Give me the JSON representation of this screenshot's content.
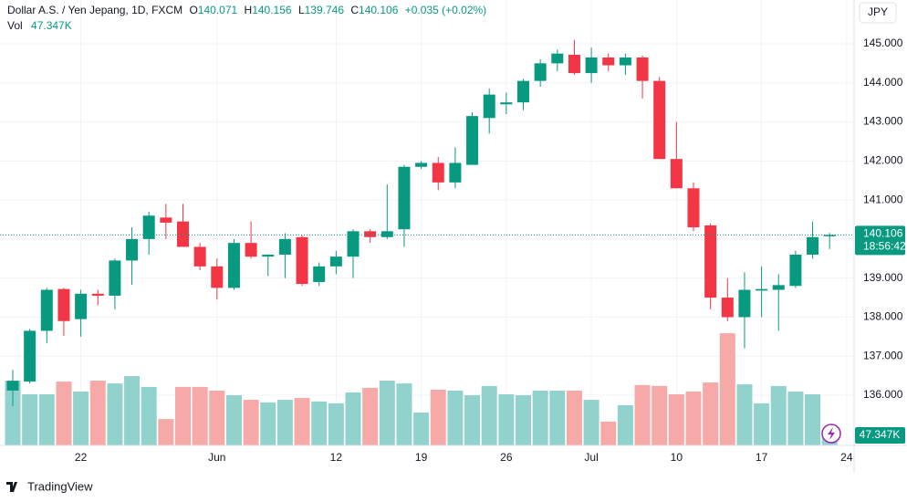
{
  "chart_data": {
    "type": "candlestick",
    "title": "Dollar A.S. / Yen Jepang, 1D, FXCM",
    "ohlc_labels": [
      "O",
      "H",
      "L",
      "C"
    ],
    "change_label": "+0.035 (+0.02%)",
    "volume_label": "Vol",
    "currency": "JPY",
    "countdown": "18:56:42",
    "brand": "TradingView",
    "categories": [
      null,
      null,
      null,
      null,
      "22",
      null,
      null,
      null,
      null,
      null,
      null,
      null,
      "Jun",
      null,
      null,
      null,
      null,
      null,
      null,
      "12",
      null,
      null,
      null,
      null,
      "19",
      null,
      null,
      null,
      null,
      "26",
      null,
      null,
      null,
      null,
      "Jul",
      null,
      null,
      null,
      null,
      "10",
      null,
      null,
      null,
      null,
      "17",
      null,
      null,
      null,
      null,
      "24"
    ],
    "open": [
      136.12,
      136.35,
      137.65,
      138.72,
      137.95,
      138.6,
      138.55,
      139.45,
      140.0,
      140.55,
      140.45,
      139.8,
      139.3,
      138.75,
      139.9,
      139.55,
      139.6,
      140.05,
      138.9,
      139.3,
      139.55,
      140.2,
      140.05,
      140.25,
      141.85,
      141.95,
      141.45,
      141.9,
      143.1,
      143.45,
      143.5,
      144.05,
      144.5,
      144.72,
      144.25,
      144.65,
      144.45,
      144.65,
      144.05,
      142.05,
      141.3,
      140.35,
      138.5,
      138.0,
      138.68,
      138.7,
      138.8,
      139.6,
      140.071,
      null
    ],
    "high": [
      136.65,
      137.7,
      138.75,
      138.75,
      138.7,
      138.7,
      139.5,
      140.3,
      140.7,
      140.9,
      140.9,
      139.9,
      139.5,
      140.0,
      140.45,
      139.6,
      140.15,
      140.1,
      139.4,
      139.7,
      140.25,
      140.25,
      141.4,
      141.9,
      142.0,
      142.1,
      142.35,
      143.25,
      143.85,
      143.75,
      144.1,
      144.6,
      144.85,
      145.1,
      144.9,
      144.75,
      144.75,
      144.7,
      144.15,
      143.0,
      141.45,
      140.4,
      139.0,
      139.15,
      139.3,
      139.1,
      139.7,
      140.45,
      140.156,
      null
    ],
    "low": [
      135.72,
      136.3,
      137.33,
      137.52,
      137.5,
      138.3,
      138.2,
      138.83,
      139.6,
      140.0,
      139.8,
      139.2,
      138.45,
      138.7,
      139.5,
      139.05,
      139.0,
      138.8,
      138.8,
      139.1,
      139.0,
      139.9,
      140.0,
      139.8,
      141.8,
      141.25,
      141.3,
      141.9,
      142.7,
      143.2,
      143.3,
      143.9,
      144.3,
      144.2,
      144.0,
      144.3,
      144.2,
      143.6,
      142.05,
      141.3,
      140.2,
      138.2,
      137.9,
      137.2,
      138.0,
      137.65,
      138.75,
      139.5,
      139.746,
      null
    ],
    "close": [
      136.37,
      137.65,
      138.7,
      137.9,
      138.6,
      138.55,
      139.45,
      140.0,
      140.6,
      140.42,
      139.8,
      139.3,
      138.75,
      139.9,
      139.55,
      139.6,
      140.0,
      138.85,
      139.3,
      139.55,
      140.2,
      140.05,
      140.2,
      141.85,
      141.95,
      141.45,
      141.95,
      143.15,
      143.7,
      143.5,
      144.05,
      144.5,
      144.75,
      144.25,
      144.65,
      144.45,
      144.65,
      144.05,
      142.05,
      141.3,
      140.3,
      138.5,
      138.0,
      138.7,
      138.72,
      138.82,
      139.6,
      140.05,
      140.106,
      null
    ],
    "volume": [
      280000,
      221000,
      221000,
      276000,
      233000,
      280000,
      268000,
      300000,
      253000,
      114000,
      253000,
      253000,
      237000,
      217000,
      197000,
      186000,
      197000,
      205000,
      190000,
      182000,
      229000,
      249000,
      280000,
      268000,
      142000,
      241000,
      237000,
      217000,
      257000,
      221000,
      217000,
      237000,
      237000,
      237000,
      197000,
      103000,
      174000,
      261000,
      257000,
      221000,
      233000,
      272000,
      485000,
      264000,
      182000,
      257000,
      233000,
      221000,
      47347,
      null
    ],
    "value_labels": {
      "volume": {
        "48": "47.347K"
      }
    },
    "ylim": [
      134.715,
      146.122
    ],
    "yticks": [
      {
        "value": 136,
        "label": "136.000"
      },
      {
        "value": 137,
        "label": "137.000"
      },
      {
        "value": 138,
        "label": "138.000"
      },
      {
        "value": 139,
        "label": "139.000"
      },
      {
        "value": 140,
        "label": "140.000"
      },
      {
        "value": 141,
        "label": "141.000"
      },
      {
        "value": 142,
        "label": "142.000"
      },
      {
        "value": 143,
        "label": "143.000"
      },
      {
        "value": 144,
        "label": "144.000"
      },
      {
        "value": 145,
        "label": "145.000"
      }
    ],
    "vlim": [
      0,
      600000
    ],
    "up_color": "#089981",
    "down_color": "#f23645",
    "volume_up_color": "#92d2cc",
    "volume_down_color": "#f7a9a7",
    "grid": true
  }
}
